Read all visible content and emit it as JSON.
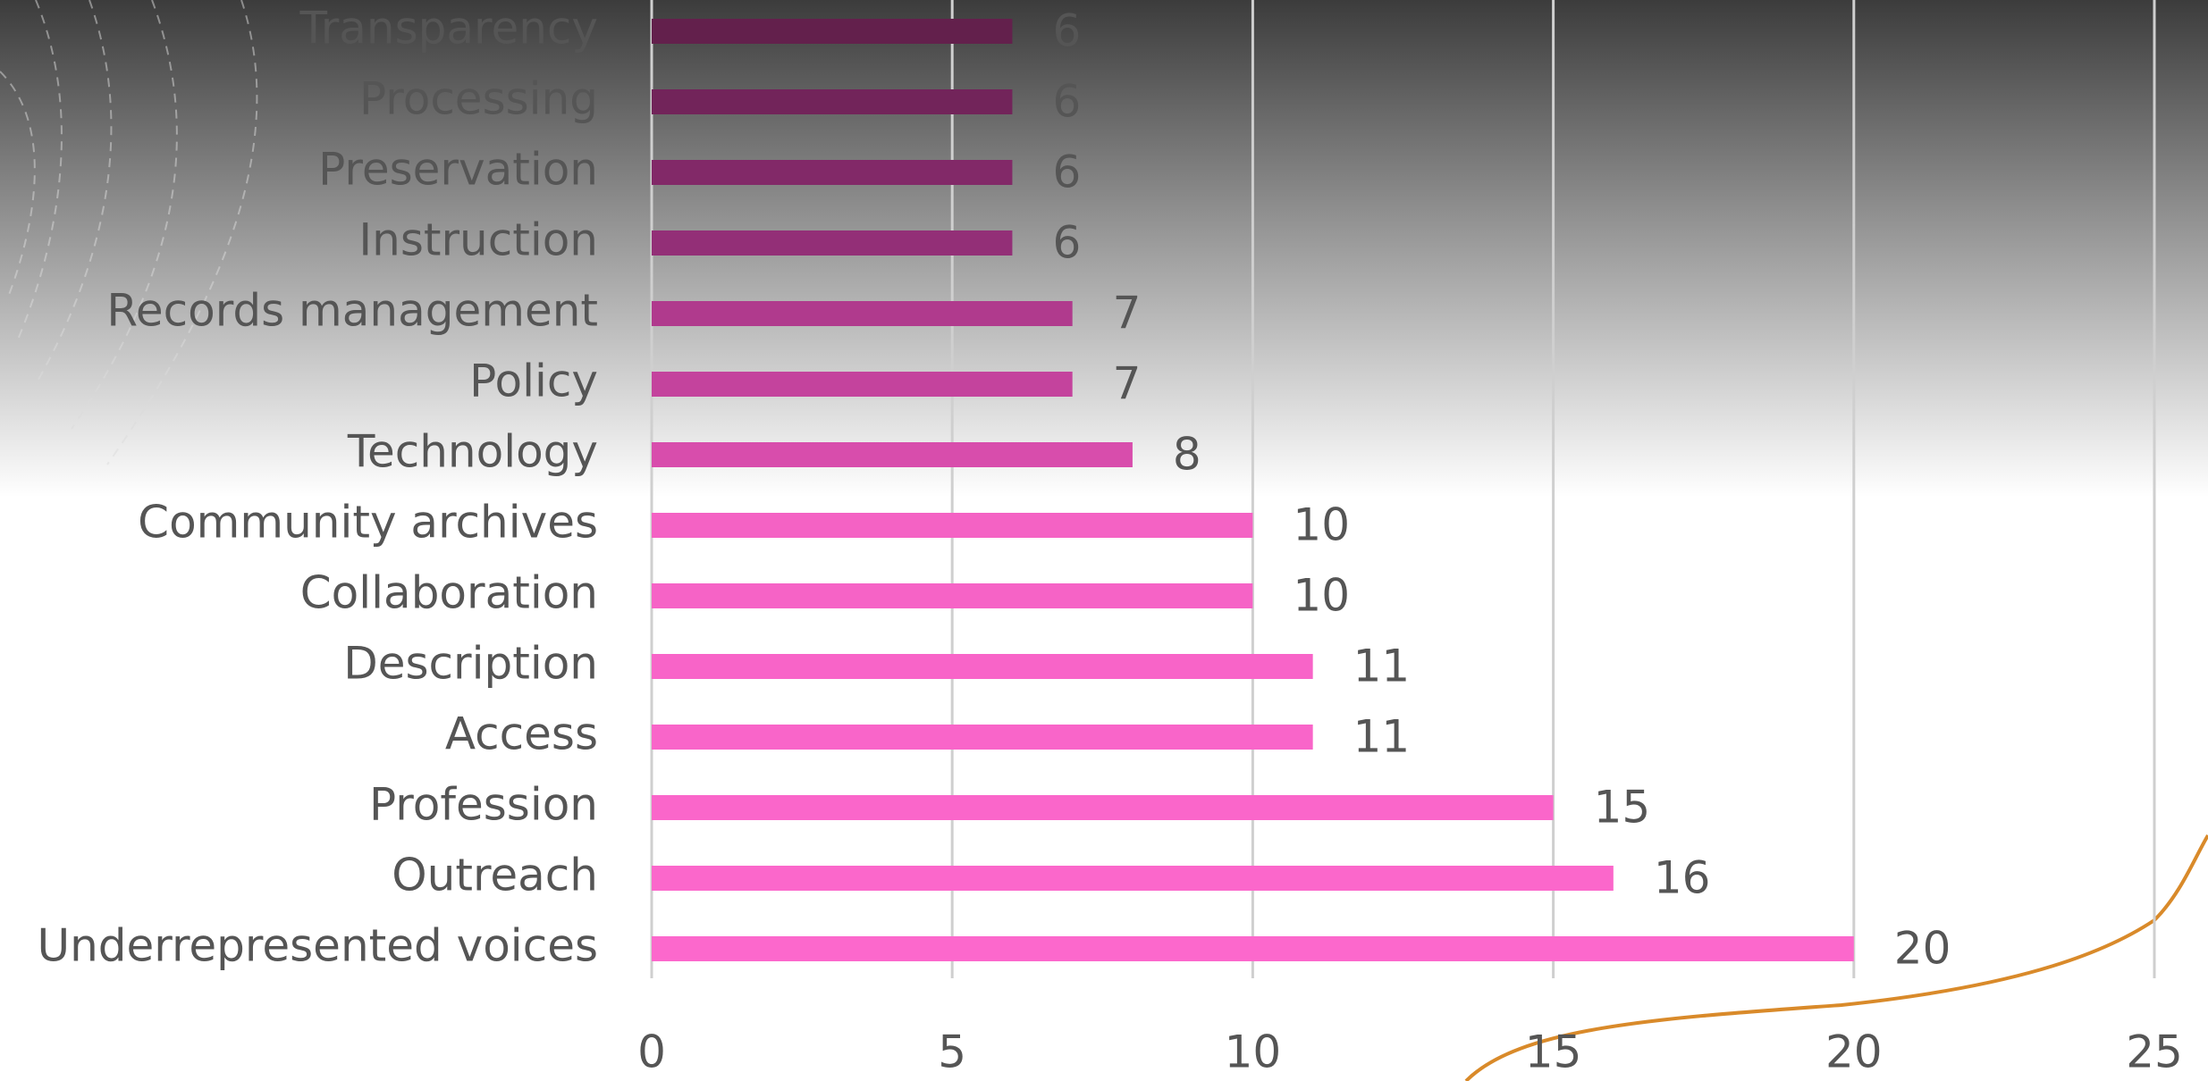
{
  "chart_data": {
    "type": "bar",
    "orientation": "horizontal",
    "categories": [
      "Transparency",
      "Processing",
      "Preservation",
      "Instruction",
      "Records management",
      "Policy",
      "Technology",
      "Community archives",
      "Collaboration",
      "Description",
      "Access",
      "Profession",
      "Outreach",
      "Underrepresented voices"
    ],
    "values": [
      6,
      6,
      6,
      6,
      7,
      7,
      8,
      10,
      10,
      11,
      11,
      15,
      16,
      20
    ],
    "colors": [
      "#63204c",
      "#72245a",
      "#822968",
      "#932f77",
      "#b03a8d",
      "#c4439d",
      "#d84dac",
      "#f462c4",
      "#f663c6",
      "#f864c8",
      "#f965c9",
      "#fa66ca",
      "#fb67cb",
      "#fc68cc"
    ],
    "xlim": [
      0,
      25
    ],
    "xticks": [
      0,
      5,
      10,
      15,
      20,
      25
    ],
    "grid": true
  }
}
